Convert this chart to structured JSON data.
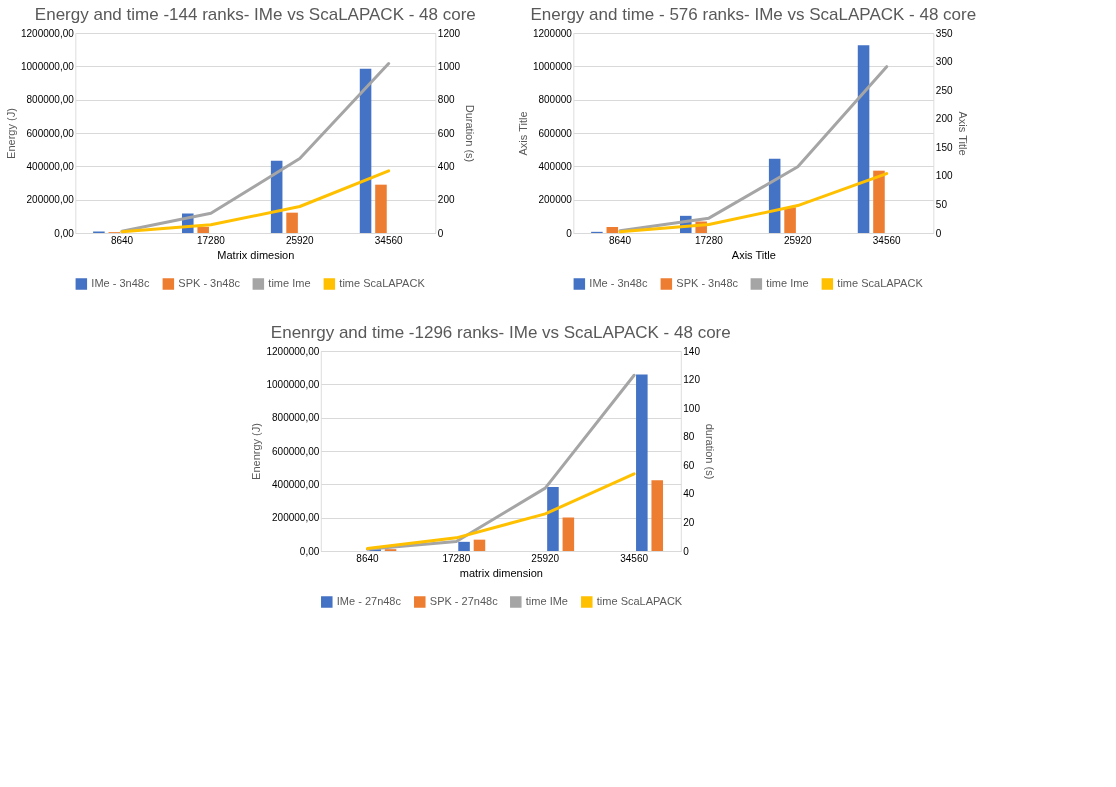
{
  "chart_data": [
    {
      "type": "bar",
      "title": "Energy and time -144 ranks- IMe vs ScaLAPACK - 48 core",
      "xlabel": "Matrix dimesion",
      "ylabel": "Energy (J)",
      "y2label": "Duration (s)",
      "categories": [
        "8640",
        "17280",
        "25920",
        "34560"
      ],
      "series": [
        {
          "name": "IMe - 3n48c",
          "color": "#4472c4",
          "values": [
            9000,
            117000,
            433000,
            986000
          ]
        },
        {
          "name": "SPK - 3n48c",
          "color": "#ed7d31",
          "values": [
            5000,
            37000,
            122000,
            290000
          ]
        },
        {
          "name": "time Ime",
          "type": "line",
          "axis": "y2",
          "color": "#a5a5a5",
          "values": [
            10,
            119,
            447,
            1017
          ]
        },
        {
          "name": "time ScaLAPACK",
          "type": "line",
          "axis": "y2",
          "color": "#ffc000",
          "values": [
            8,
            49,
            159,
            373
          ]
        }
      ],
      "ylim": [
        0,
        1200000
      ],
      "yticks": [
        {
          "value": 0,
          "label": "0,00"
        },
        {
          "value": 200000,
          "label": "200000,00"
        },
        {
          "value": 400000,
          "label": "400000,00"
        },
        {
          "value": 600000,
          "label": "600000,00"
        },
        {
          "value": 800000,
          "label": "800000,00"
        },
        {
          "value": 1000000,
          "label": "1000000,00"
        },
        {
          "value": 1200000,
          "label": "1200000,00"
        }
      ],
      "y2lim": [
        0,
        1200
      ],
      "y2ticks": [
        0,
        200,
        400,
        600,
        800,
        1000,
        1200
      ],
      "grid": "y",
      "legend": "bottom"
    },
    {
      "type": "bar",
      "title": "Energy and time - 576 ranks- IMe vs ScaLAPACK - 48 core",
      "xlabel": "Axis Title",
      "ylabel": "Axis Title",
      "y2label": "Axis Title",
      "categories": [
        "8640",
        "17280",
        "25920",
        "34560"
      ],
      "series": [
        {
          "name": "IMe - 3n48c",
          "color": "#4472c4",
          "values": [
            7000,
            103000,
            445000,
            1127000
          ]
        },
        {
          "name": "SPK - 3n48c",
          "color": "#ed7d31",
          "values": [
            36000,
            69000,
            154000,
            374000
          ]
        },
        {
          "name": "time Ime",
          "type": "line",
          "axis": "y2",
          "color": "#a5a5a5",
          "values": [
            4,
            26,
            116,
            291
          ]
        },
        {
          "name": "time ScaLAPACK",
          "type": "line",
          "axis": "y2",
          "color": "#ffc000",
          "values": [
            2,
            15,
            48,
            104
          ]
        }
      ],
      "ylim": [
        0,
        1200000
      ],
      "yticks": [
        0,
        200000,
        400000,
        600000,
        800000,
        1000000,
        1200000
      ],
      "y2lim": [
        0,
        350
      ],
      "y2ticks": [
        0,
        50,
        100,
        150,
        200,
        250,
        300,
        350
      ],
      "grid": "y",
      "legend": "bottom"
    },
    {
      "type": "bar",
      "title": "Enenrgy and time -1296 ranks- IMe vs ScaLAPACK - 48 core",
      "xlabel": "matrix dimension",
      "ylabel": "Enenrgy (J)",
      "y2label": "duration (s)",
      "categories": [
        "8640",
        "17280",
        "25920",
        "34560"
      ],
      "series": [
        {
          "name": "IMe - 27n48c",
          "color": "#4472c4",
          "values": [
            11000,
            55000,
            384000,
            1059000
          ]
        },
        {
          "name": "SPK - 27n48c",
          "color": "#ed7d31",
          "values": [
            11000,
            68000,
            201000,
            424000
          ]
        },
        {
          "name": "time IMe",
          "type": "line",
          "axis": "y2",
          "color": "#a5a5a5",
          "values": [
            1.3,
            6.6,
            44,
            123
          ]
        },
        {
          "name": "time ScaLAPACK",
          "type": "line",
          "axis": "y2",
          "color": "#ffc000",
          "values": [
            1.7,
            9.2,
            26,
            54
          ]
        }
      ],
      "ylim": [
        0,
        1200000
      ],
      "yticks": [
        {
          "value": 0,
          "label": "0,00"
        },
        {
          "value": 200000,
          "label": "200000,00"
        },
        {
          "value": 400000,
          "label": "400000,00"
        },
        {
          "value": 600000,
          "label": "600000,00"
        },
        {
          "value": 800000,
          "label": "800000,00"
        },
        {
          "value": 1000000,
          "label": "1000000,00"
        },
        {
          "value": 1200000,
          "label": "1200000,00"
        }
      ],
      "y2lim": [
        0,
        140
      ],
      "y2ticks": [
        0,
        20,
        40,
        60,
        80,
        100,
        120,
        140
      ],
      "grid": "y",
      "legend": "bottom"
    }
  ]
}
